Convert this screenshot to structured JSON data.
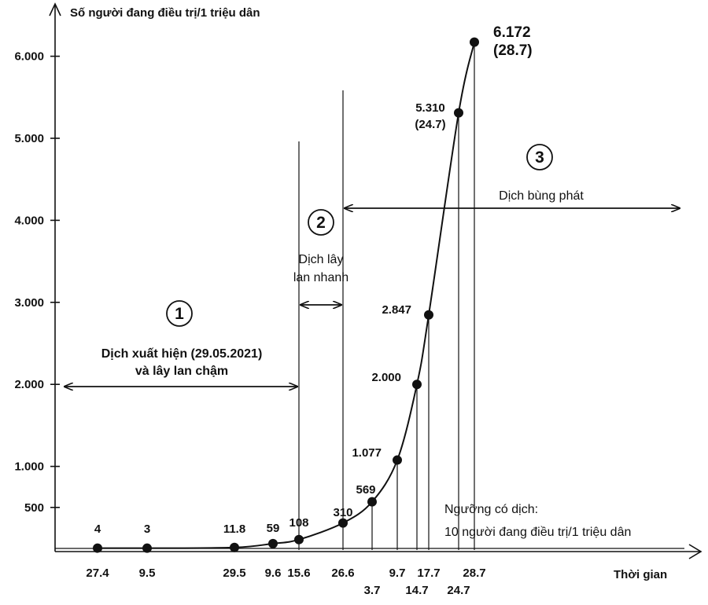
{
  "chart_data": {
    "type": "line",
    "ylabel": "Số người đang điều trị/1 triệu dân",
    "xlabel": "Thời gian",
    "ylim": [
      0,
      6400
    ],
    "y_ticks": [
      {
        "value": 500,
        "label": "500"
      },
      {
        "value": 1000,
        "label": "1.000"
      },
      {
        "value": 2000,
        "label": "2.000"
      },
      {
        "value": 3000,
        "label": "3.000"
      },
      {
        "value": 4000,
        "label": "4.000"
      },
      {
        "value": 5000,
        "label": "5.000"
      },
      {
        "value": 6000,
        "label": "6.000"
      }
    ],
    "points": [
      {
        "date": "27.4",
        "value": 4,
        "label": "4"
      },
      {
        "date": "9.5",
        "value": 3,
        "label": "3"
      },
      {
        "date": "29.5",
        "value": 11.8,
        "label": "11.8"
      },
      {
        "date": "9.6",
        "value": 59,
        "label": "59"
      },
      {
        "date": "15.6",
        "value": 108,
        "label": "108"
      },
      {
        "date": "26.6",
        "value": 310,
        "label": "310"
      },
      {
        "date": "3.7",
        "value": 569,
        "label": "569"
      },
      {
        "date": "9.7",
        "value": 1077,
        "label": "1.077"
      },
      {
        "date": "14.7",
        "value": 2000,
        "label": "2.000"
      },
      {
        "date": "17.7",
        "value": 2847,
        "label": "2.847"
      },
      {
        "date": "24.7",
        "value": 5310,
        "label": "5.310",
        "sublabel": "(24.7)"
      },
      {
        "date": "28.7",
        "value": 6172,
        "label": "6.172",
        "sublabel": "(28.7)"
      }
    ],
    "phases": [
      {
        "number": "1",
        "lines": [
          "Dịch xuất hiện (29.05.2021)",
          "và lây lan chậm"
        ]
      },
      {
        "number": "2",
        "lines": [
          "Dịch lây",
          "lan nhanh"
        ]
      },
      {
        "number": "3",
        "lines": [
          "Dịch bùng phát"
        ]
      }
    ],
    "threshold_note": [
      "Ngưỡng có dịch:",
      "10 người đang điều trị/1 triệu dân"
    ]
  }
}
